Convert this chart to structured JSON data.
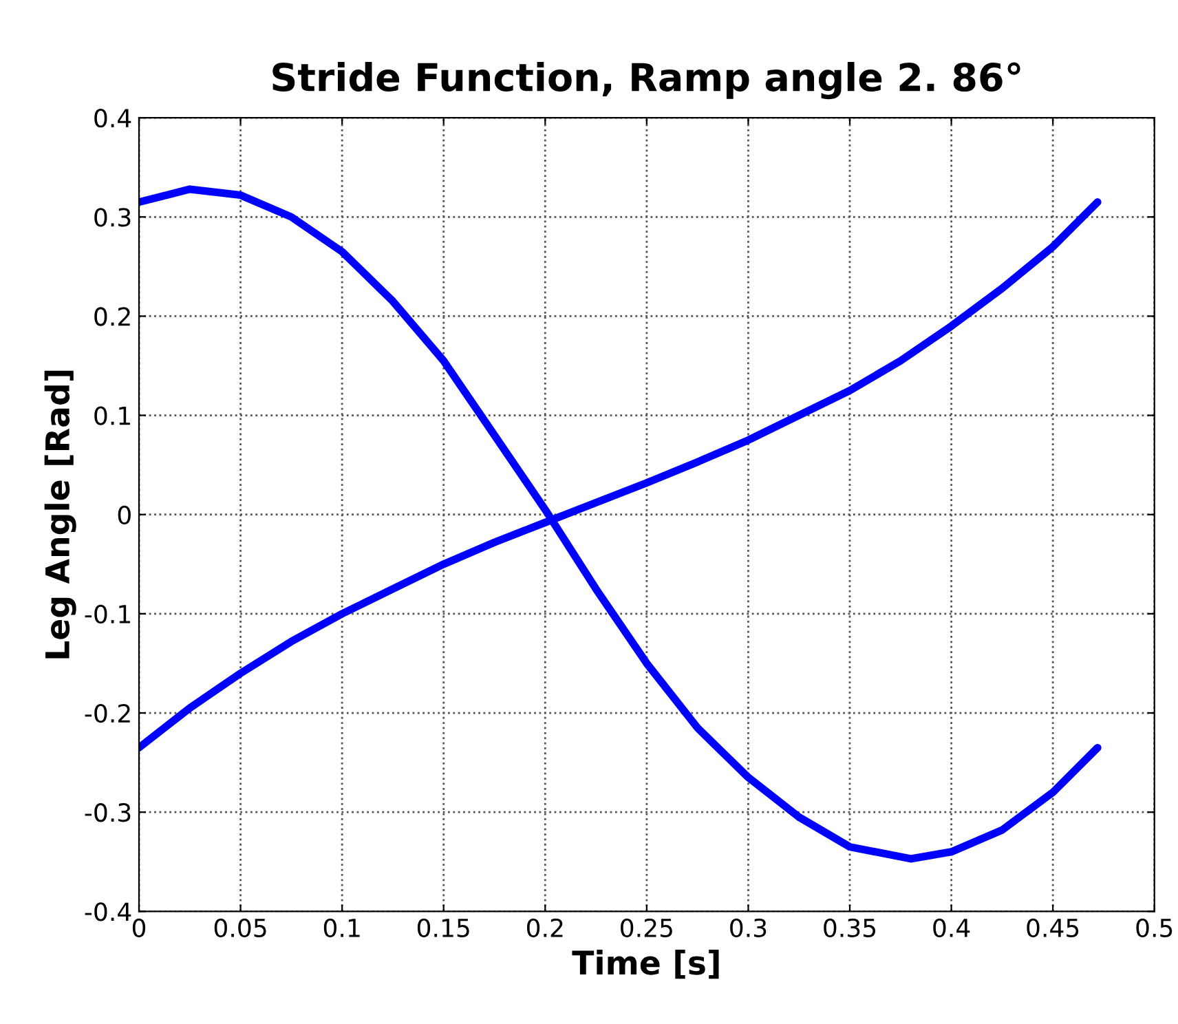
{
  "chart_data": {
    "type": "line",
    "title": "Stride Function, Ramp angle 2. 86°",
    "xlabel": "Time [s]",
    "ylabel": "Leg Angle [Rad]",
    "xlim": [
      0,
      0.5
    ],
    "xticks": [
      0,
      0.05,
      0.1,
      0.15,
      0.2,
      0.25,
      0.3,
      0.35,
      0.4,
      0.45,
      0.5
    ],
    "ylim": [
      -0.4,
      0.4
    ],
    "yticks": [
      -0.4,
      -0.3,
      -0.2,
      -0.1,
      0,
      0.1,
      0.2,
      0.3,
      0.4
    ],
    "grid": true,
    "line_style": "solid",
    "marker": "none",
    "legend": false,
    "series": [
      {
        "color": "#0000ff",
        "x": [
          0,
          0.025,
          0.05,
          0.075,
          0.1,
          0.125,
          0.15,
          0.175,
          0.2,
          0.225,
          0.25,
          0.275,
          0.3,
          0.325,
          0.35,
          0.38,
          0.4,
          0.425,
          0.45,
          0.472
        ],
        "values": [
          0.315,
          0.328,
          0.322,
          0.3,
          0.265,
          0.215,
          0.155,
          0.08,
          0.005,
          -0.075,
          -0.15,
          -0.215,
          -0.265,
          -0.305,
          -0.335,
          -0.347,
          -0.34,
          -0.318,
          -0.28,
          -0.235
        ]
      },
      {
        "color": "#0000ff",
        "x": [
          0,
          0.025,
          0.05,
          0.075,
          0.1,
          0.125,
          0.15,
          0.175,
          0.2,
          0.225,
          0.25,
          0.275,
          0.3,
          0.325,
          0.35,
          0.375,
          0.4,
          0.425,
          0.45,
          0.472
        ],
        "values": [
          -0.235,
          -0.195,
          -0.16,
          -0.128,
          -0.1,
          -0.075,
          -0.05,
          -0.028,
          -0.008,
          0.012,
          0.032,
          0.053,
          0.075,
          0.1,
          0.125,
          0.155,
          0.19,
          0.228,
          0.27,
          0.315
        ]
      }
    ]
  }
}
